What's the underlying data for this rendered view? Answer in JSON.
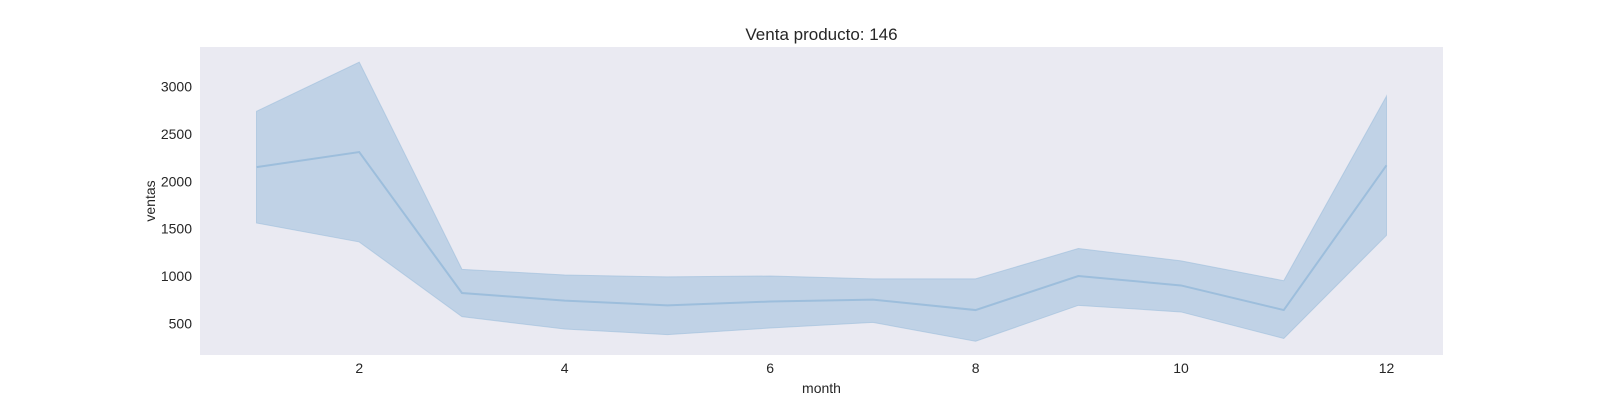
{
  "chart_data": {
    "type": "line",
    "title": "Venta producto: 146",
    "xlabel": "month",
    "ylabel": "ventas",
    "x": [
      1,
      2,
      3,
      4,
      5,
      6,
      7,
      8,
      9,
      10,
      11,
      12
    ],
    "series": [
      {
        "values": [
          2150,
          2310,
          820,
          740,
          690,
          730,
          750,
          640,
          1000,
          900,
          640,
          2170
        ],
        "ci_low": [
          1560,
          1360,
          570,
          440,
          380,
          450,
          510,
          310,
          690,
          620,
          340,
          1430
        ],
        "ci_high": [
          2740,
          3260,
          1070,
          1010,
          990,
          1000,
          970,
          970,
          1290,
          1160,
          950,
          2900
        ]
      }
    ],
    "xticks": [
      2,
      4,
      6,
      8,
      10,
      12
    ],
    "yticks": [
      500,
      1000,
      1500,
      2000,
      2500,
      3000
    ],
    "xlim": [
      0.45,
      12.55
    ],
    "ylim": [
      165,
      3420
    ],
    "grid": false,
    "colors": {
      "background": "#EAEAF2",
      "line": "#9DBEDC",
      "band": "#B0C9E0"
    }
  }
}
